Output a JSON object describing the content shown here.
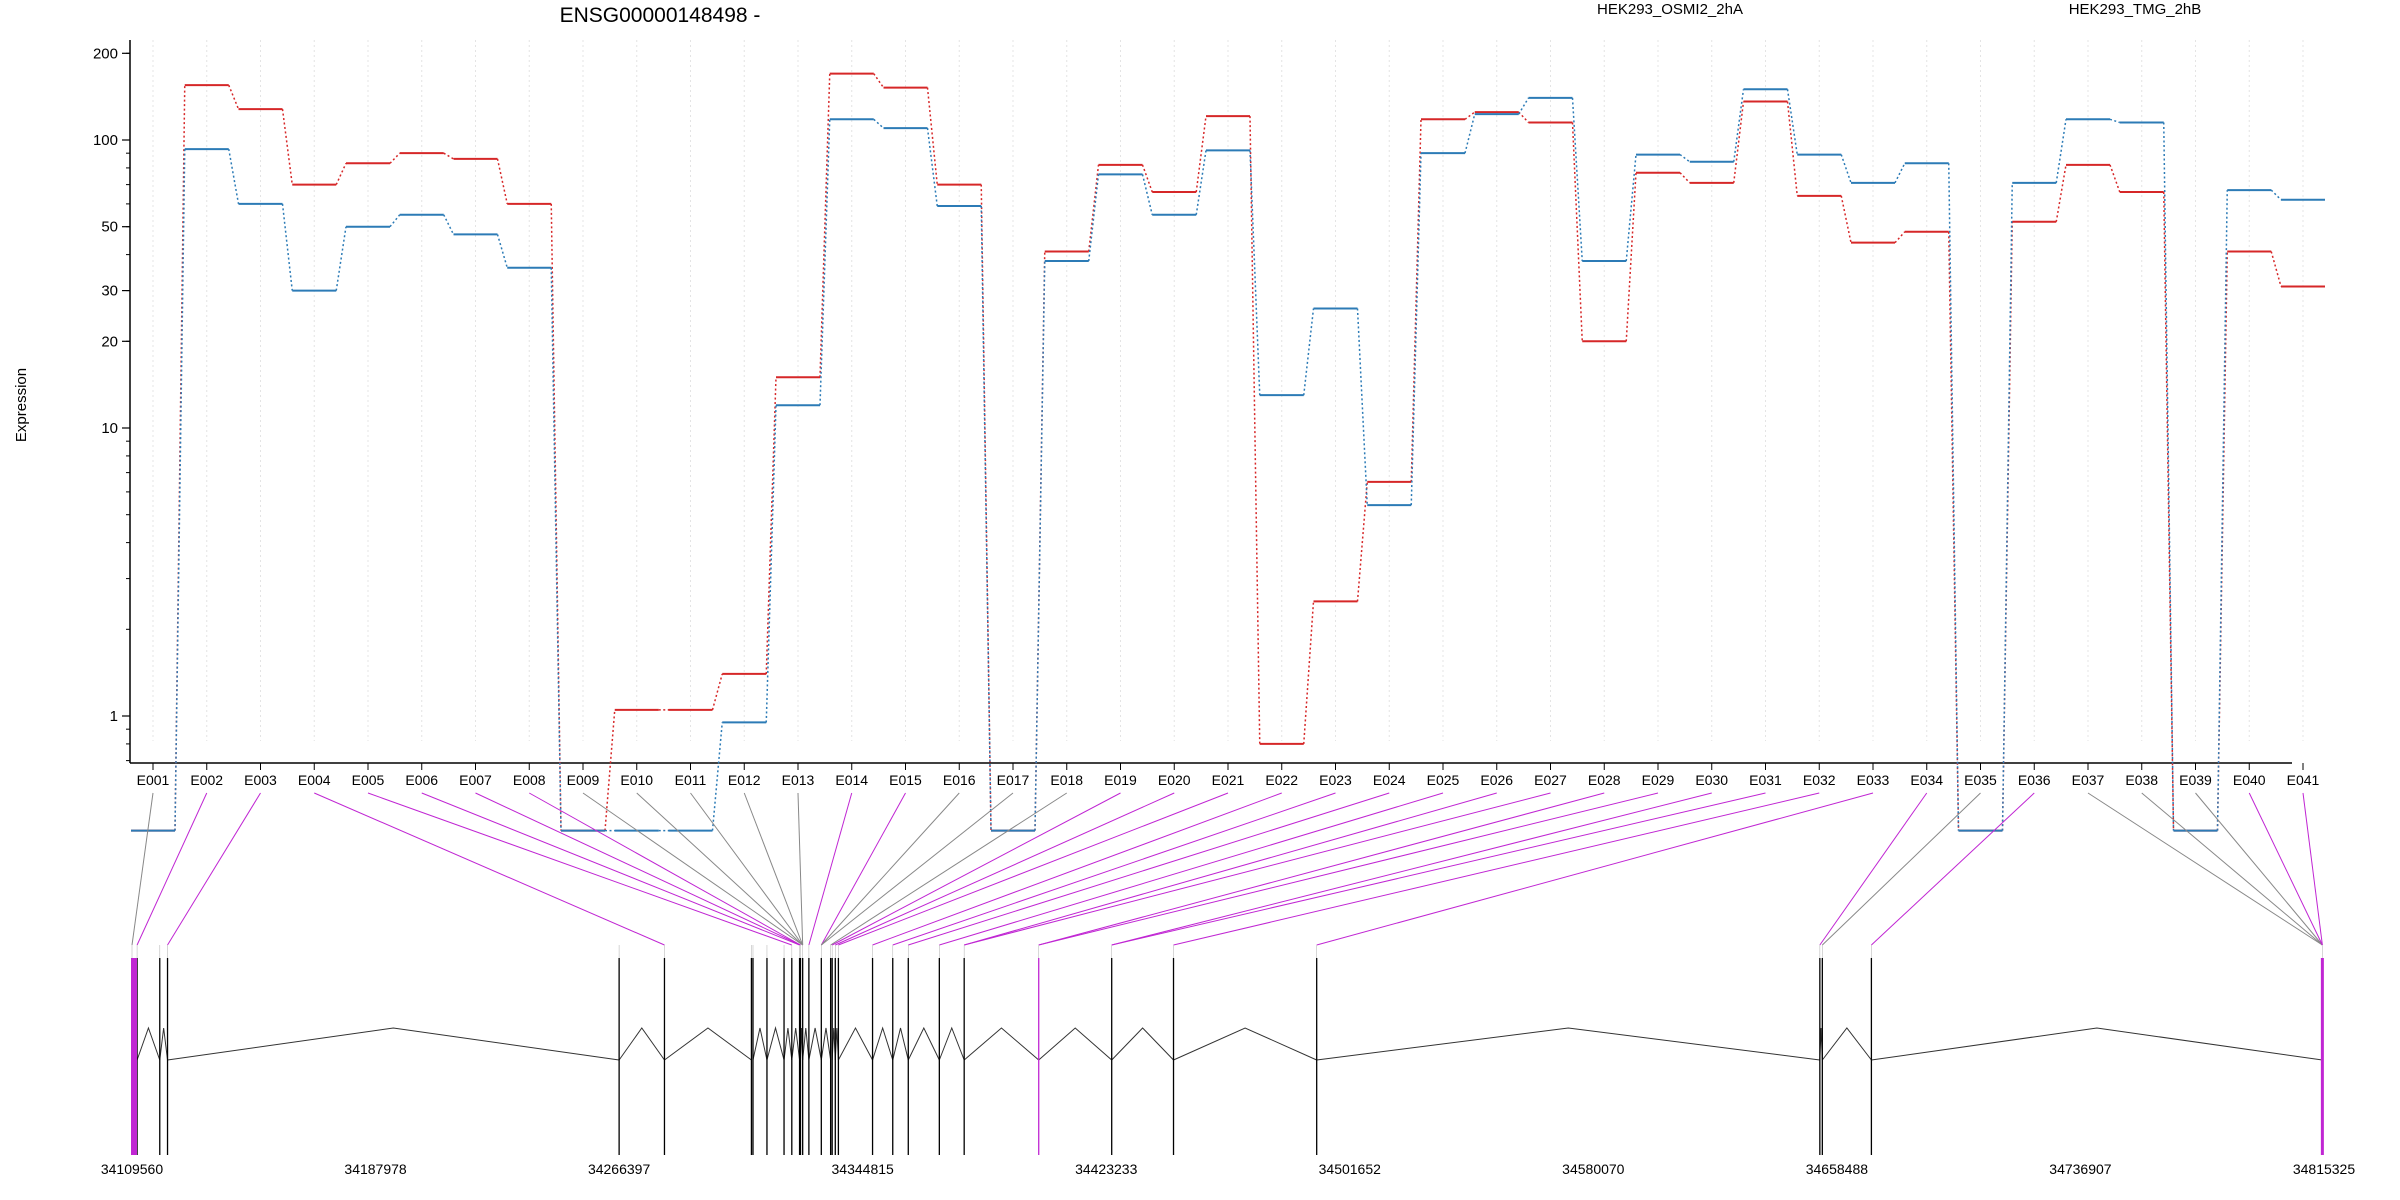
{
  "chart_data": {
    "type": "line",
    "title": "ENSG00000148498 -",
    "ylabel": "Expression",
    "y_scale": "log",
    "ylim": [
      0.4,
      200
    ],
    "yticks": [
      "200",
      "100",
      "50",
      "30",
      "20",
      "10",
      "1"
    ],
    "ytick_values": [
      200,
      100,
      50,
      30,
      20,
      10,
      1
    ],
    "legend_placement": "top",
    "grid": "vertical dotted",
    "categories": [
      "E001",
      "E002",
      "E003",
      "E004",
      "E005",
      "E006",
      "E007",
      "E008",
      "E009",
      "E010",
      "E011",
      "E012",
      "E013",
      "E014",
      "E015",
      "E016",
      "E017",
      "E018",
      "E019",
      "E020",
      "E021",
      "E022",
      "E023",
      "E024",
      "E025",
      "E026",
      "E027",
      "E028",
      "E029",
      "E030",
      "E031",
      "E032",
      "E033",
      "E034",
      "E035",
      "E036",
      "E037",
      "E038",
      "E039",
      "E040",
      "E041"
    ],
    "series": [
      {
        "name": "HEK293_OSMI2_2hA",
        "color": "#d62728",
        "values": [
          0.4,
          155,
          128,
          70,
          83,
          90,
          86,
          60,
          0.4,
          1.05,
          1.05,
          1.4,
          15,
          170,
          152,
          70,
          0.4,
          41,
          82,
          66,
          121,
          0.8,
          2.5,
          6.5,
          118,
          125,
          115,
          20,
          77,
          71,
          136,
          64,
          44,
          48,
          0.4,
          52,
          82,
          66,
          0.4,
          41,
          31
        ]
      },
      {
        "name": "HEK293_TMG_2hB",
        "color": "#2c7bb6",
        "values": [
          0.4,
          93,
          60,
          30,
          50,
          55,
          47,
          36,
          0.4,
          0.4,
          0.4,
          0.95,
          12,
          118,
          110,
          59,
          0.4,
          38,
          76,
          55,
          92,
          13,
          26,
          5.4,
          90,
          123,
          140,
          38,
          89,
          84,
          150,
          89,
          71,
          83,
          0.4,
          71,
          118,
          115,
          0.4,
          67,
          62
        ]
      }
    ],
    "genomic_ticks": [
      "34109560",
      "34187978",
      "34266397",
      "34344815",
      "34423233",
      "34501652",
      "34580070",
      "34658488",
      "34736907",
      "34815325"
    ],
    "genomic_range": [
      34109560,
      34815325
    ],
    "exon_positions": [
      34109560,
      34111200,
      34118500,
      34121000,
      34266400,
      34281000,
      34309000,
      34309500,
      34314000,
      34319500,
      34322000,
      34324500,
      34324800,
      34325500,
      34327500,
      34331500,
      34334500,
      34335000,
      34336000,
      34337000,
      34348000,
      34354500,
      34359500,
      34369500,
      34377500,
      34401500,
      34425000,
      34444900,
      34491000,
      34653000,
      34653800,
      34669600,
      34814800
    ],
    "highlight_color": "#c026d3",
    "neutral_color": "#888888",
    "connector_highlight": [
      false,
      true,
      true,
      true,
      true,
      true,
      true,
      true,
      false,
      false,
      false,
      false,
      false,
      true,
      true,
      false,
      false,
      false,
      true,
      true,
      true,
      true,
      true,
      true,
      true,
      true,
      true,
      true,
      true,
      true,
      true,
      true,
      true,
      true,
      false,
      true,
      false,
      false,
      false,
      true,
      true
    ]
  }
}
